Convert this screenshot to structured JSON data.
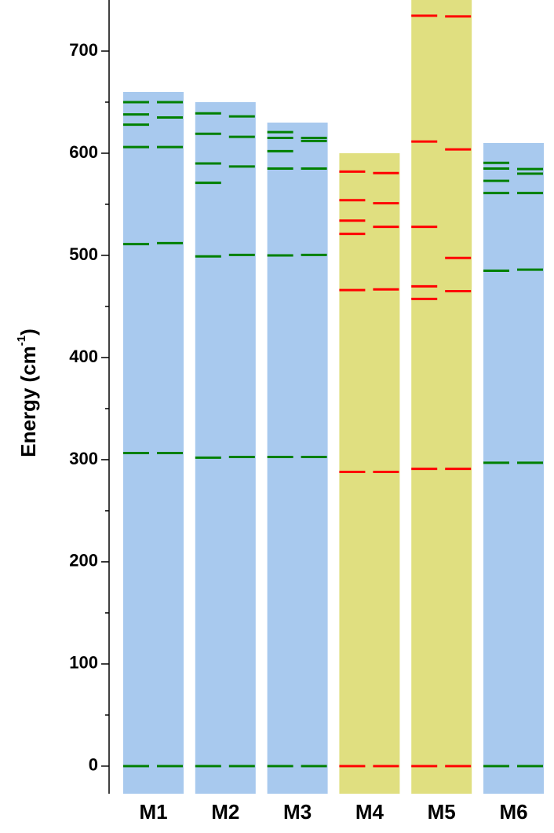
{
  "chart_data": {
    "type": "energy-levels",
    "y_label": {
      "text": "Energy (cm",
      "superscript": "-1",
      "suffix": ")"
    },
    "categories": [
      "M1",
      "M2",
      "M3",
      "M4",
      "M5",
      "M6"
    ],
    "bar_values": [
      660,
      650,
      630,
      600,
      750,
      610
    ],
    "bar_colors": [
      "#a8c9ee",
      "#a8c9ee",
      "#a8c9ee",
      "#e0df80",
      "#e0df80",
      "#a8c9ee"
    ],
    "level_colors": [
      "#008000",
      "#008000",
      "#008000",
      "#ff0000",
      "#ff0000",
      "#008000"
    ],
    "levels": [
      {
        "left": [
          0,
          306.5,
          511,
          606,
          628,
          638,
          650
        ],
        "right": [
          0,
          306.5,
          512,
          606,
          635,
          650
        ]
      },
      {
        "left": [
          0,
          302,
          499,
          571,
          590,
          619,
          639
        ],
        "right": [
          0,
          302.6,
          500.5,
          587,
          616,
          636
        ]
      },
      {
        "left": [
          0,
          302.6,
          500,
          585,
          602,
          615,
          620.7
        ],
        "right": [
          0,
          302.6,
          500.5,
          585,
          612,
          615
        ]
      },
      {
        "left": [
          0,
          288,
          466,
          521,
          534,
          554,
          582
        ],
        "right": [
          0,
          288,
          466.7,
          528,
          551,
          580.6
        ]
      },
      {
        "left": [
          0,
          291,
          457.4,
          469.7,
          528,
          611.4,
          734.6
        ],
        "right": [
          0,
          291,
          465,
          497.5,
          603.7,
          733.9
        ]
      },
      {
        "left": [
          0,
          297,
          485,
          561,
          573,
          585,
          590.6
        ],
        "right": [
          0,
          297,
          486,
          561,
          580,
          584.5
        ]
      }
    ],
    "ylim": [
      -27,
      750
    ],
    "yticks": [
      0,
      100,
      200,
      300,
      400,
      500,
      600,
      700
    ],
    "yminorticks": [
      50,
      150,
      250,
      350,
      450,
      550,
      650
    ]
  }
}
